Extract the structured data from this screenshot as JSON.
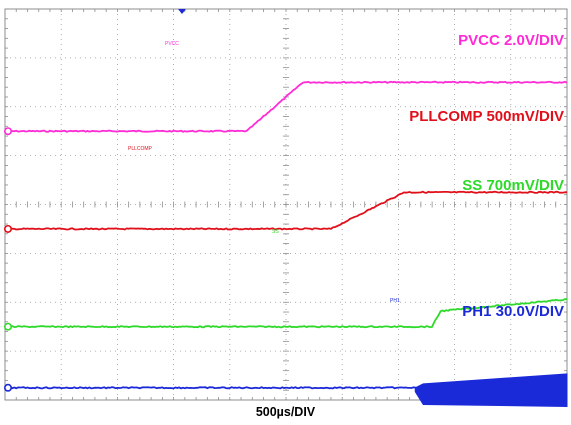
{
  "colors": {
    "ch_pvcc": "#ff2bd6",
    "ch_pllcomp": "#e0101a",
    "ch_ss": "#2ed92a",
    "ch_ph1": "#1b2ad8",
    "grid": "#9a9a9a",
    "background": "#ffffff"
  },
  "chart_data": {
    "type": "line",
    "title": "",
    "grid": true,
    "x_divisions": 10,
    "y_divisions": 8,
    "xlabel": "500µs/DIV",
    "series": [
      {
        "name": "PVCC 2.0V/DIV",
        "plot_label": "PVCC",
        "color": "#ff2bd6",
        "ground_div": 2.5,
        "points": [
          [
            0,
            0
          ],
          [
            4.3,
            0
          ],
          [
            4.8,
            0.5
          ],
          [
            5.3,
            1.0
          ],
          [
            5.5,
            1.0
          ],
          [
            10,
            1.0
          ]
        ],
        "burst": false
      },
      {
        "name": "PLLCOMP 500mV/DIV",
        "plot_label": "PLLCOMP",
        "color": "#e0101a",
        "ground_div": 4.5,
        "points": [
          [
            0,
            0
          ],
          [
            5.8,
            0
          ],
          [
            7.1,
            0.75
          ],
          [
            10,
            0.75
          ]
        ],
        "burst": false
      },
      {
        "name": "SS 700mV/DIV",
        "plot_label": "SS",
        "color": "#2ed92a",
        "ground_div": 6.5,
        "points": [
          [
            0,
            0
          ],
          [
            7.6,
            0
          ],
          [
            7.75,
            0.32
          ],
          [
            10,
            0.56
          ]
        ],
        "burst": false
      },
      {
        "name": "PH1 30.0V/DIV",
        "plot_label": "PH1",
        "color": "#1b2ad8",
        "ground_div": 7.75,
        "points": [
          [
            0,
            0
          ],
          [
            10,
            0
          ]
        ],
        "burst": true,
        "burst_start": 10.1,
        "burst_amplitude": [
          0.45,
          0.45
        ]
      }
    ]
  }
}
